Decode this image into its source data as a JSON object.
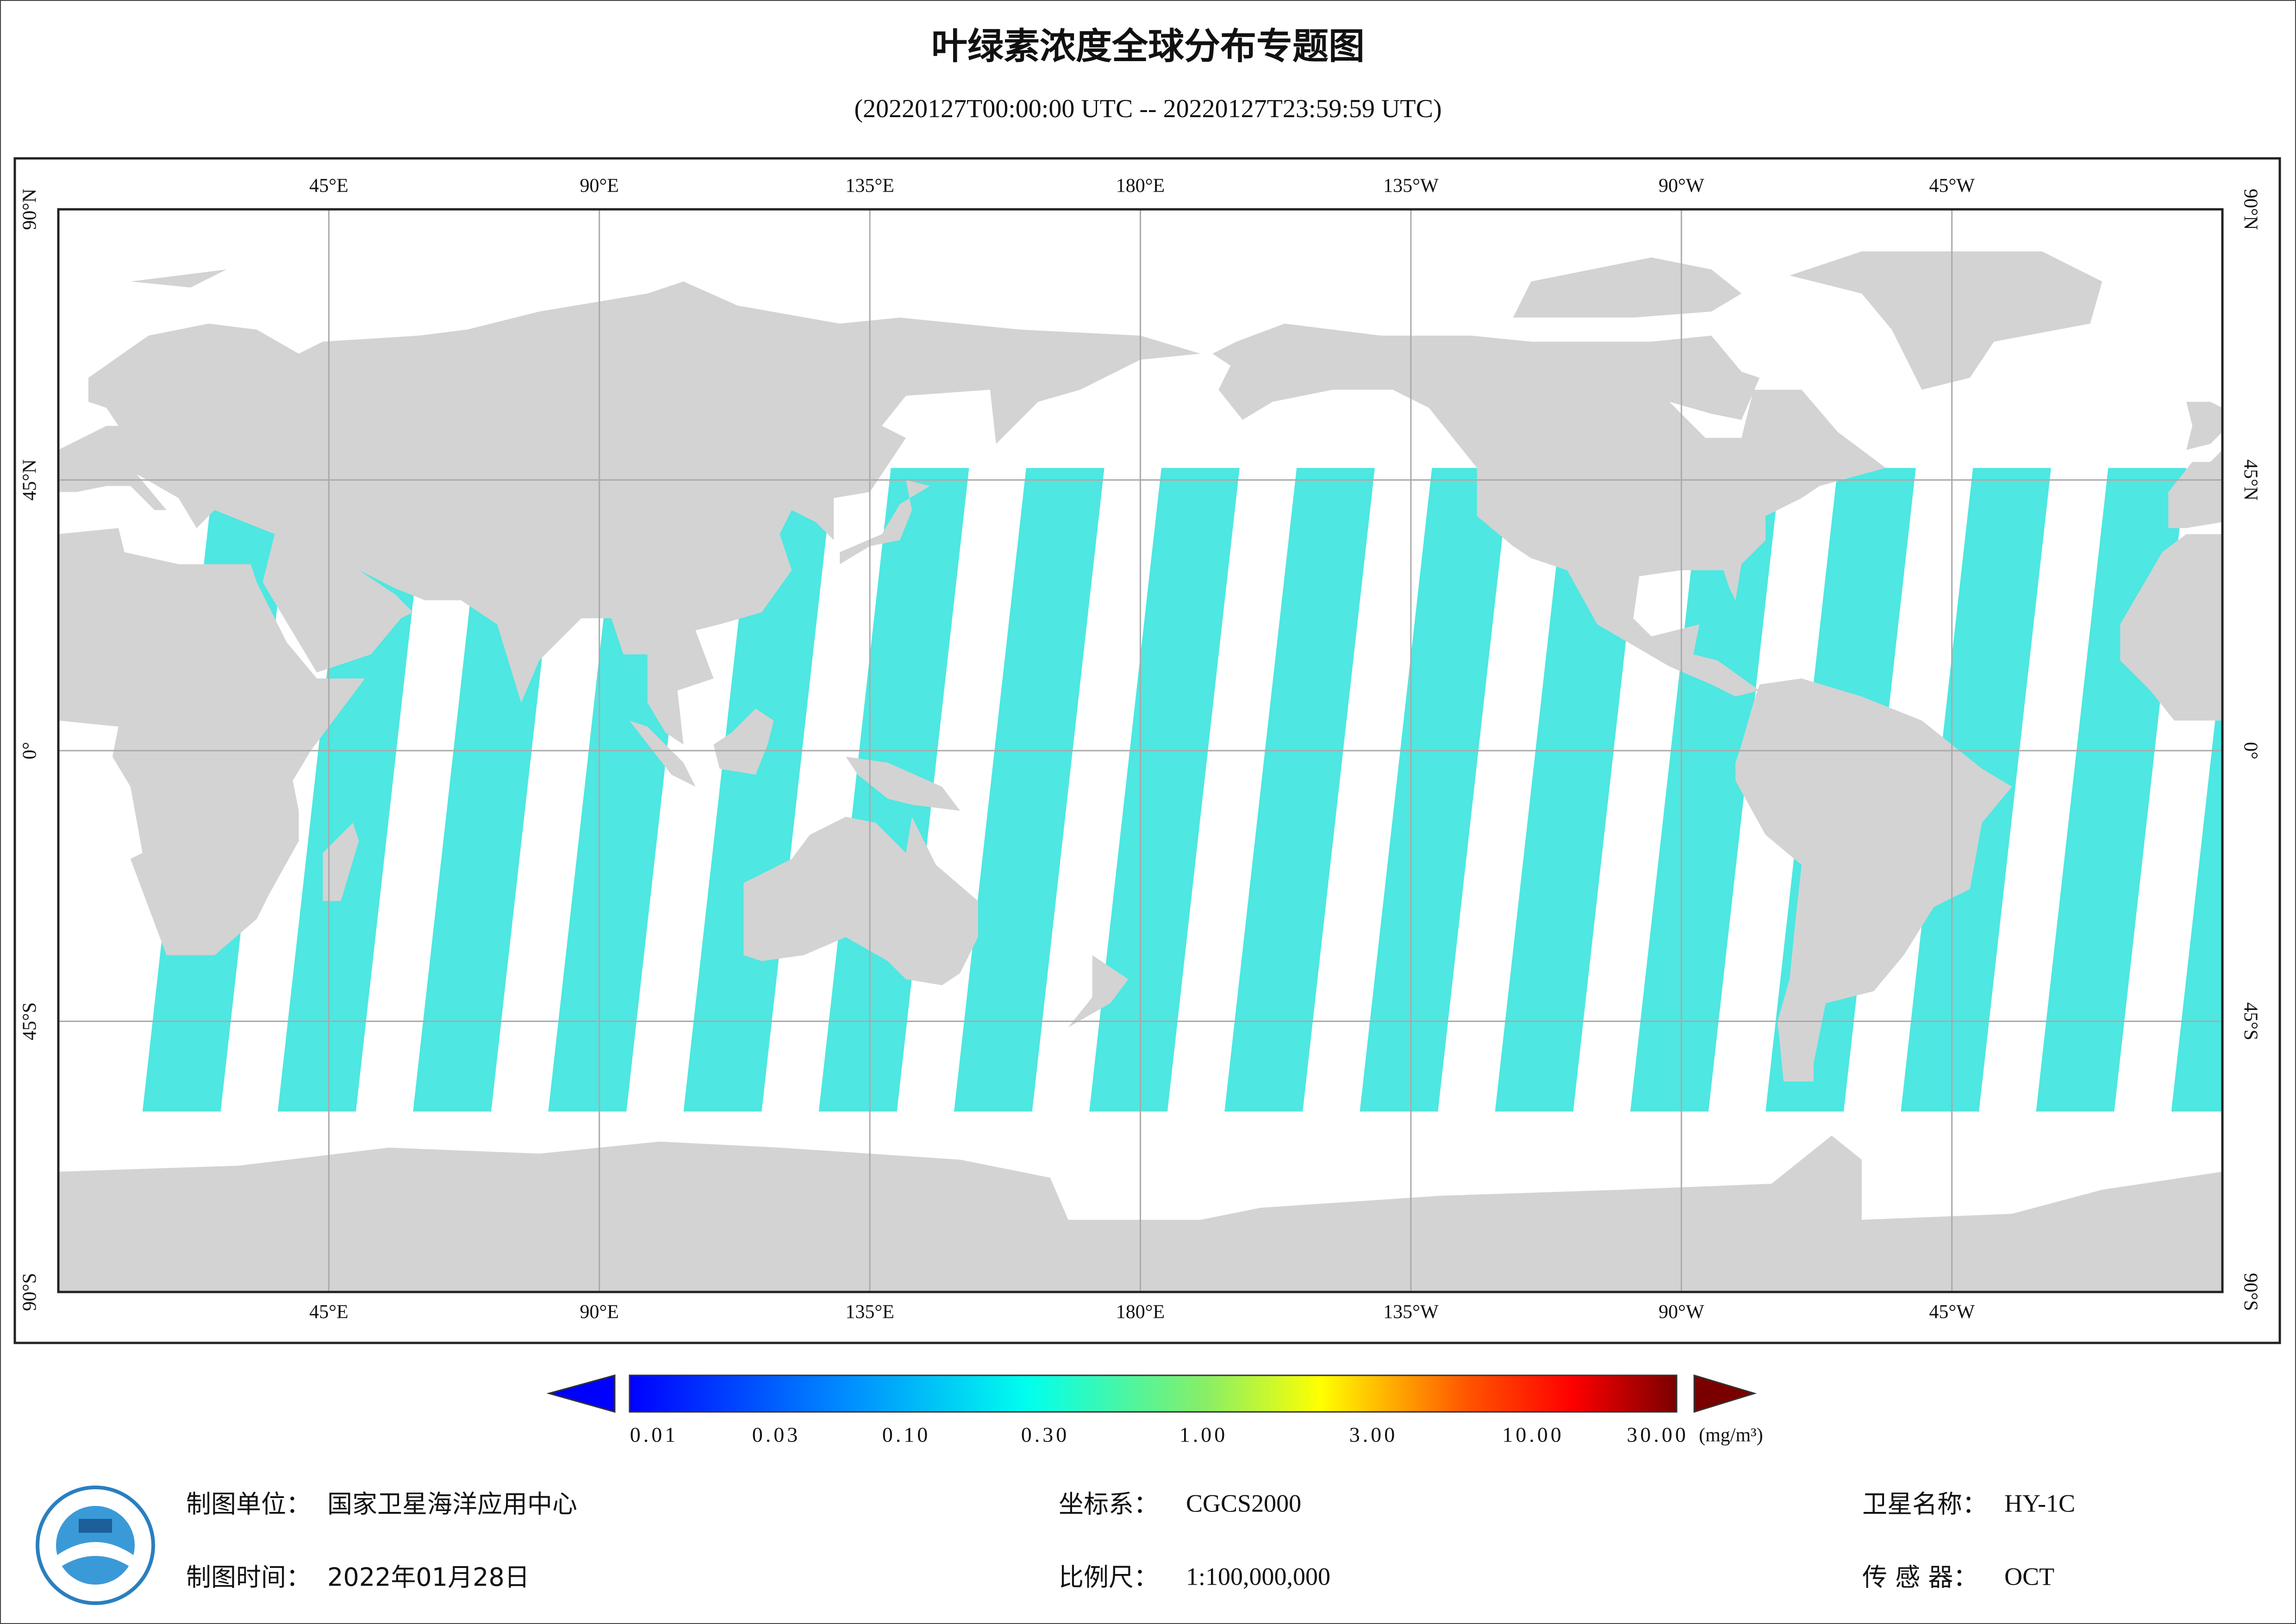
{
  "header": {
    "title": "叶绿素浓度全球分布专题图",
    "subtitle": "(20220127T00:00:00 UTC -- 20220127T23:59:59 UTC)"
  },
  "map": {
    "lon_labels": [
      "45°E",
      "90°E",
      "135°E",
      "180°E",
      "135°W",
      "90°W",
      "45°W"
    ],
    "lat_labels": [
      "90°N",
      "45°N",
      "0°",
      "45°S",
      "90°S"
    ]
  },
  "colorbar": {
    "labels": [
      "0.01",
      "0.03",
      "0.10",
      "0.30",
      "1.00",
      "3.00",
      "10.00",
      "30.00"
    ],
    "unit": "(mg/m³)"
  },
  "footer": {
    "items": [
      {
        "label": "制图单位：",
        "value": "国家卫星海洋应用中心"
      },
      {
        "label": "制图时间：",
        "value": "2022年01月28日"
      },
      {
        "label": "坐标系：",
        "value": "CGCS2000"
      },
      {
        "label": "比例尺：",
        "value": "1:100,000,000"
      },
      {
        "label": "卫星名称：",
        "value": "HY-1C"
      },
      {
        "label": "传 感 器：",
        "value": "OCT"
      }
    ]
  }
}
